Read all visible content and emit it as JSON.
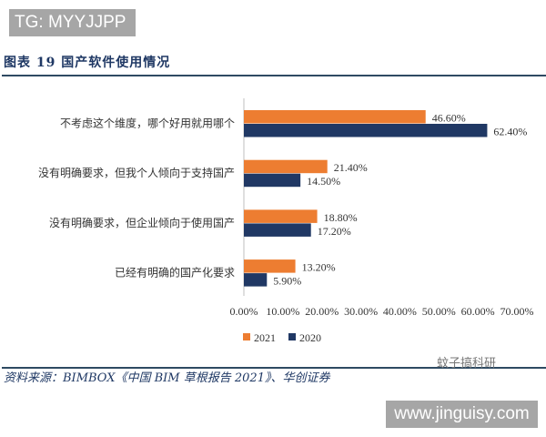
{
  "watermark_top": "TG: MYYJJPP",
  "figure_title": "图表 19   国产软件使用情况",
  "source": "资料来源：BIMBOX《中国 BIM 草根报告 2021》、华创证券",
  "watermark_wechat": "蚊子搞科研",
  "watermark_site": "www.jinguisy.com",
  "chart_data": {
    "type": "bar",
    "orientation": "horizontal",
    "categories": [
      "不考虑这个维度，哪个好用就用哪个",
      "没有明确要求，但我个人倾向于支持国产",
      "没有明确要求，但企业倾向于使用国产",
      "已经有明确的国产化要求"
    ],
    "series": [
      {
        "name": "2021",
        "color": "#ed7d31",
        "values": [
          46.6,
          21.4,
          18.8,
          13.2
        ],
        "labels": [
          "46.60%",
          "21.40%",
          "18.80%",
          "13.20%"
        ]
      },
      {
        "name": "2020",
        "color": "#203864",
        "values": [
          62.4,
          14.5,
          17.2,
          5.9
        ],
        "labels": [
          "62.40%",
          "14.50%",
          "17.20%",
          "5.90%"
        ]
      }
    ],
    "xlim": [
      0,
      70
    ],
    "xticks": [
      "0.00%",
      "10.00%",
      "20.00%",
      "30.00%",
      "40.00%",
      "50.00%",
      "60.00%",
      "70.00%"
    ],
    "grid": false,
    "legend": "bottom"
  }
}
